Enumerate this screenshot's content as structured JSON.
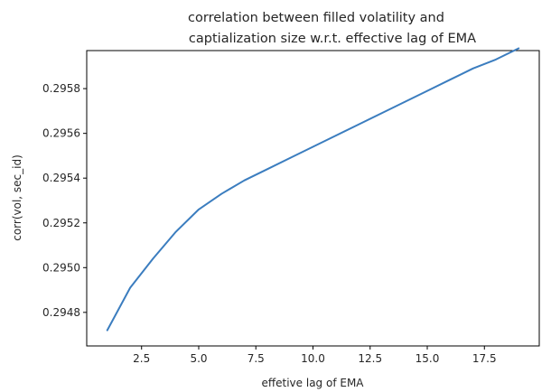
{
  "chart_data": {
    "type": "line",
    "title_lines": [
      "correlation between filled volatility and",
      "captialization size w.r.t. effective lag of EMA"
    ],
    "xlabel": "effetive lag of EMA",
    "ylabel": "corr(vol, sec_id)",
    "xlim": [
      0.1,
      19.9
    ],
    "ylim": [
      0.29465,
      0.29597
    ],
    "xticks": [
      2.5,
      5.0,
      7.5,
      10.0,
      12.5,
      15.0,
      17.5
    ],
    "xtick_labels": [
      "2.5",
      "5.0",
      "7.5",
      "10.0",
      "12.5",
      "15.0",
      "17.5"
    ],
    "yticks": [
      0.2948,
      0.295,
      0.2952,
      0.2954,
      0.2956,
      0.2958
    ],
    "ytick_labels": [
      "0.2948",
      "0.2950",
      "0.2952",
      "0.2954",
      "0.2956",
      "0.2958"
    ],
    "grid": false,
    "series": [
      {
        "color": "#3b7dbf",
        "x": [
          1,
          2,
          3,
          4,
          5,
          6,
          7,
          8,
          9,
          10,
          11,
          12,
          13,
          14,
          15,
          16,
          17,
          18,
          19
        ],
        "y": [
          0.29472,
          0.29491,
          0.29504,
          0.29516,
          0.29526,
          0.29533,
          0.29539,
          0.29544,
          0.29549,
          0.29554,
          0.29559,
          0.29564,
          0.29569,
          0.29574,
          0.29579,
          0.29584,
          0.29589,
          0.29593,
          0.29598
        ]
      }
    ]
  }
}
